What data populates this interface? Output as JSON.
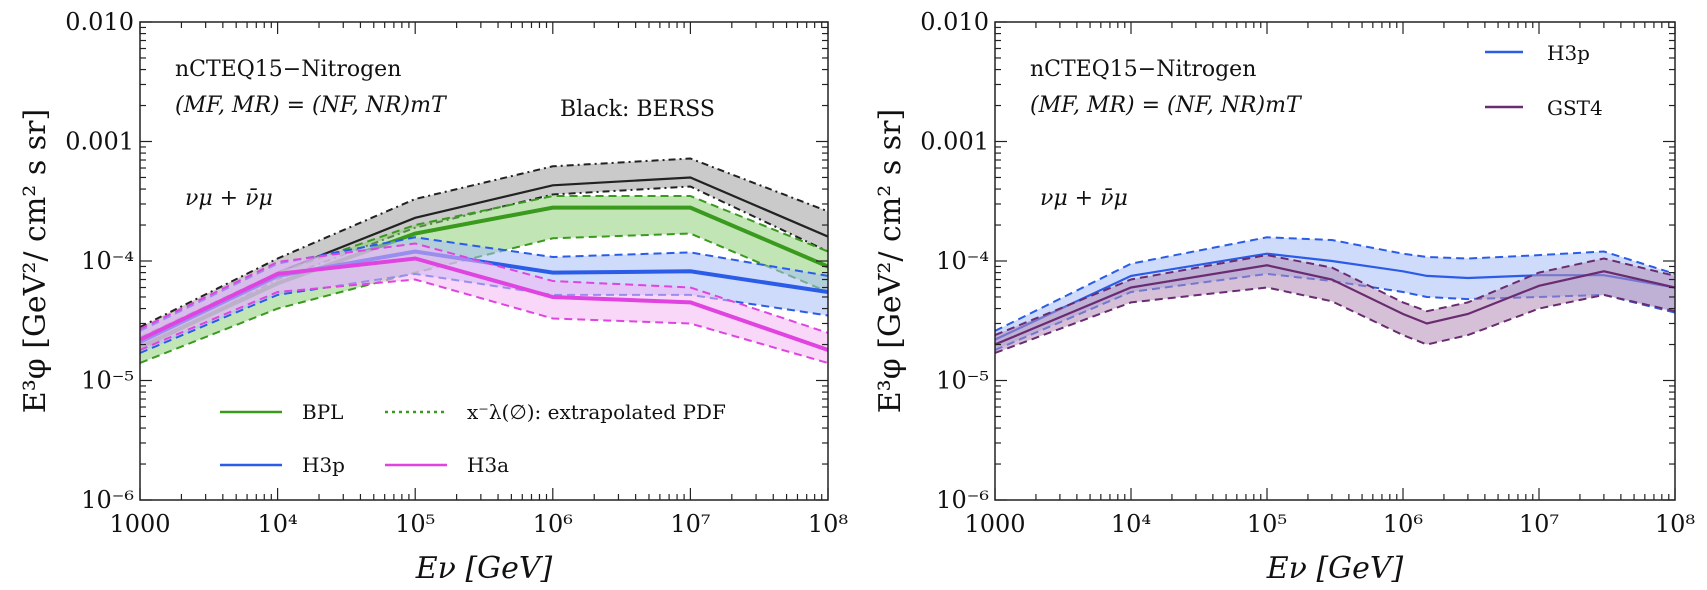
{
  "chart_data": [
    {
      "type": "area",
      "x_scale": "log",
      "y_scale": "log",
      "xlim": [
        1000,
        100000000
      ],
      "ylim": [
        1e-06,
        0.01
      ],
      "xlabel": "E_ν [GeV]",
      "ylabel": "E³φ [GeV²/ cm² s sr]",
      "x_ticks": [
        "1000",
        "10^4",
        "10^5",
        "10^6",
        "10^7",
        "10^8"
      ],
      "y_ticks": [
        "10^-6",
        "10^-5",
        "10^-4",
        "0.001",
        "0.010"
      ],
      "annotations": [
        "nCTEQ15−Nitrogen",
        "(M_F, M_R) = (N_F, N_R)m_T",
        "ν_μ + ν̄_μ",
        "Black: BERSS"
      ],
      "legend": [
        {
          "label": "BPL",
          "style": "solid",
          "color": "#3a9a1e"
        },
        {
          "label": "x^−λ(∅): extrapolated PDF",
          "style": "dotted",
          "color": "#3a9a1e"
        },
        {
          "label": "H3p",
          "style": "solid",
          "color": "#2b5ce8"
        },
        {
          "label": "H3a",
          "style": "solid",
          "color": "#e044e0"
        }
      ],
      "x": [
        1000,
        10000,
        100000,
        1000000,
        10000000,
        100000000
      ],
      "series": [
        {
          "name": "BERSS",
          "color": "#222222",
          "fill": "#9e9e9e",
          "central": [
            2.1e-05,
            8e-05,
            0.00023,
            0.00043,
            0.0005,
            0.00016
          ],
          "upper": [
            2.8e-05,
            0.000105,
            0.00033,
            0.00062,
            0.00072,
            0.00026
          ],
          "lower": [
            1.8e-05,
            7e-05,
            0.00019,
            0.00036,
            0.00042,
            0.00012
          ]
        },
        {
          "name": "BPL",
          "color": "#3a9a1e",
          "fill": "#8fd07a",
          "central": [
            1.9e-05,
            6.5e-05,
            0.00017,
            0.00028,
            0.00028,
            9e-05
          ],
          "upper": [
            2.3e-05,
            8e-05,
            0.0002,
            0.00035,
            0.00035,
            0.00012
          ],
          "lower": [
            1.4e-05,
            4e-05,
            8e-05,
            0.000155,
            0.00017,
            5.5e-05
          ]
        },
        {
          "name": "H3p",
          "color": "#2b5ce8",
          "fill": "#a8bdf6",
          "central": [
            2.1e-05,
            7.5e-05,
            0.00012,
            8e-05,
            8.2e-05,
            5.5e-05
          ],
          "upper": [
            2.6e-05,
            9.5e-05,
            0.000158,
            0.000108,
            0.000118,
            7.5e-05
          ],
          "lower": [
            1.7e-05,
            5.2e-05,
            7.8e-05,
            5.2e-05,
            5.2e-05,
            3.5e-05
          ]
        },
        {
          "name": "H3a",
          "color": "#e044e0",
          "fill": "#f4b6f4",
          "central": [
            2.2e-05,
            7.8e-05,
            0.000105,
            5e-05,
            4.5e-05,
            1.8e-05
          ],
          "upper": [
            2.7e-05,
            9.8e-05,
            0.00014,
            6.8e-05,
            6e-05,
            2.5e-05
          ],
          "lower": [
            1.8e-05,
            5.5e-05,
            7e-05,
            3.3e-05,
            3e-05,
            1.4e-05
          ]
        }
      ]
    },
    {
      "type": "area",
      "x_scale": "log",
      "y_scale": "log",
      "xlim": [
        1000,
        100000000
      ],
      "ylim": [
        1e-06,
        0.01
      ],
      "xlabel": "E_ν [GeV]",
      "ylabel": "E³φ [GeV²/ cm² s sr]",
      "x_ticks": [
        "1000",
        "10^4",
        "10^5",
        "10^6",
        "10^7",
        "10^8"
      ],
      "y_ticks": [
        "10^-6",
        "10^-5",
        "10^-4",
        "0.001",
        "0.010"
      ],
      "annotations": [
        "nCTEQ15−Nitrogen",
        "(M_F, M_R) = (N_F, N_R)m_T",
        "ν_μ + ν̄_μ"
      ],
      "legend": [
        {
          "label": "H3p",
          "style": "solid",
          "color": "#2b5ce8"
        },
        {
          "label": "GST4",
          "style": "solid",
          "color": "#6a2c70"
        }
      ],
      "x": [
        1000,
        10000,
        100000,
        300000,
        1000000,
        1500000,
        3000000,
        10000000,
        30000000,
        100000000
      ],
      "series": [
        {
          "name": "H3p",
          "color": "#2b5ce8",
          "fill": "#a8bdf6",
          "central": [
            2.2e-05,
            7.5e-05,
            0.000115,
            0.0001,
            8.2e-05,
            7.5e-05,
            7.2e-05,
            7.6e-05,
            7.6e-05,
            6e-05
          ],
          "upper": [
            2.6e-05,
            9.5e-05,
            0.000158,
            0.00015,
            0.000115,
            0.000108,
            0.000105,
            0.000112,
            0.00012,
            7.8e-05
          ],
          "lower": [
            1.8e-05,
            5.5e-05,
            7.8e-05,
            6.8e-05,
            5.5e-05,
            5e-05,
            4.8e-05,
            5e-05,
            5.2e-05,
            3.7e-05
          ]
        },
        {
          "name": "GST4",
          "color": "#6a2c70",
          "fill": "#b38cb8",
          "central": [
            2e-05,
            6e-05,
            9.2e-05,
            7e-05,
            3.6e-05,
            3e-05,
            3.6e-05,
            6.2e-05,
            8.2e-05,
            6e-05
          ],
          "upper": [
            2.4e-05,
            7e-05,
            0.000112,
            8.8e-05,
            4.5e-05,
            3.8e-05,
            4.5e-05,
            8e-05,
            0.000105,
            7.5e-05
          ],
          "lower": [
            1.7e-05,
            4.5e-05,
            6e-05,
            4.6e-05,
            2.4e-05,
            2e-05,
            2.4e-05,
            4e-05,
            5.2e-05,
            3.8e-05
          ]
        }
      ]
    }
  ]
}
